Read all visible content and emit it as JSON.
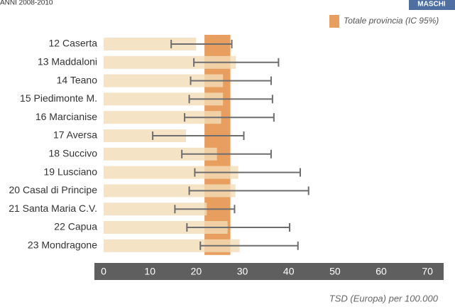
{
  "chart_data": {
    "type": "bar_errorbar",
    "subtitle": "ANNI 2008-2010",
    "badge": "MASCHI",
    "band_label": "Totale provincia (IC 95%)",
    "x_label": "TSD (Europa) per 100.000",
    "categories": [
      "12 Caserta",
      "13 Maddaloni",
      "14 Teano",
      "15 Piedimonte M.",
      "16 Marcianise",
      "17 Aversa",
      "18 Succivo",
      "19 Lusciano",
      "20 Casal di Principe",
      "21 Santa Maria C.V.",
      "22 Capua",
      "23 Mondragone"
    ],
    "values": [
      20.0,
      28.6,
      25.8,
      25.8,
      25.4,
      17.8,
      24.5,
      29.1,
      28.5,
      22.3,
      26.8,
      29.4
    ],
    "ci_low": [
      14.6,
      19.5,
      18.8,
      18.5,
      17.5,
      10.6,
      16.9,
      19.7,
      18.5,
      15.4,
      18.0,
      20.9
    ],
    "ci_high": [
      27.7,
      37.8,
      36.2,
      36.5,
      36.8,
      30.3,
      36.2,
      42.5,
      44.3,
      28.3,
      40.2,
      42.0
    ],
    "band": [
      21.8,
      27.4
    ],
    "color": "#f3dcb8",
    "band_color": "#e89e5e",
    "error_color": "#6e6e6e",
    "xlim": [
      -2,
      73.5
    ],
    "xticks": [
      0,
      10,
      20,
      30,
      40,
      50,
      60,
      70
    ]
  }
}
